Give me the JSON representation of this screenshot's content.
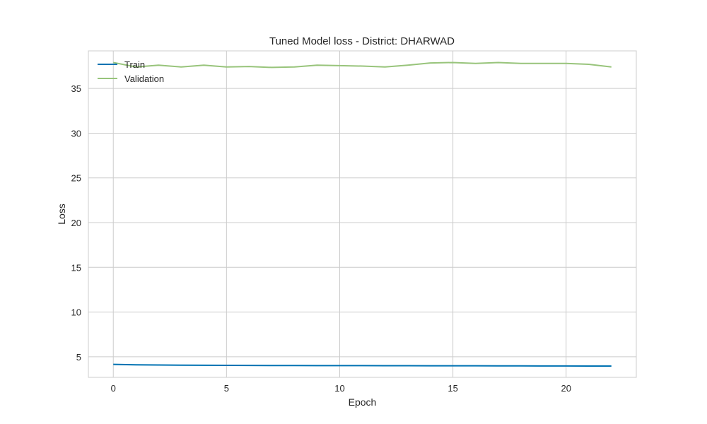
{
  "chart_data": {
    "type": "line",
    "title": "Tuned Model loss - District: DHARWAD",
    "xlabel": "Epoch",
    "ylabel": "Loss",
    "xlim": [
      -1.1,
      23.1
    ],
    "ylim": [
      2.7,
      39.2
    ],
    "xticks": [
      0,
      5,
      10,
      15,
      20
    ],
    "yticks": [
      5,
      10,
      15,
      20,
      25,
      30,
      35
    ],
    "grid": true,
    "legend_position": "top-left",
    "x": [
      0,
      1,
      2,
      3,
      4,
      5,
      6,
      7,
      8,
      9,
      10,
      11,
      12,
      13,
      14,
      15,
      16,
      17,
      18,
      19,
      20,
      21,
      22
    ],
    "series": [
      {
        "name": "Train",
        "color": "#0072b2",
        "values": [
          4.15,
          4.1,
          4.08,
          4.06,
          4.05,
          4.04,
          4.03,
          4.02,
          4.02,
          4.01,
          4.01,
          4.01,
          4.0,
          4.0,
          3.99,
          3.99,
          3.99,
          3.98,
          3.98,
          3.97,
          3.97,
          3.96,
          3.96
        ]
      },
      {
        "name": "Validation",
        "color": "#98c47b",
        "values": [
          37.9,
          37.4,
          37.6,
          37.4,
          37.6,
          37.4,
          37.45,
          37.35,
          37.4,
          37.6,
          37.55,
          37.5,
          37.4,
          37.6,
          37.85,
          37.9,
          37.8,
          37.9,
          37.8,
          37.8,
          37.8,
          37.7,
          37.4
        ]
      }
    ]
  }
}
